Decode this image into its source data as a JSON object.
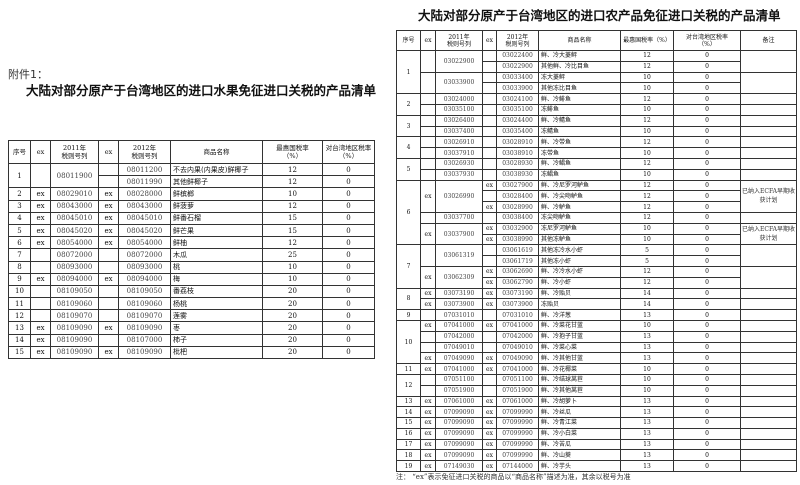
{
  "left": {
    "attachment": "附件1：",
    "title": "大陆对部分原产于台湾地区的进口水果免征进口关税的产品清单",
    "headers": [
      "序号",
      "ex",
      "2011年\n税则号列",
      "ex",
      "2012年\n税则号列",
      "商品名称",
      "最惠国税率\n（%）",
      "对台湾地区税率\n（%）"
    ],
    "groups": [
      {
        "no": "1",
        "subs": [
          {
            "ex": "",
            "code2011": "08011900",
            "items": [
              {
                "ex": "",
                "code": "08011200",
                "name": "不去内果(内果皮)鲜椰子",
                "mfn": "12",
                "tw": "0"
              },
              {
                "ex": "",
                "code": "08011990",
                "name": "其他鲜椰子",
                "mfn": "12",
                "tw": "0"
              }
            ]
          }
        ]
      },
      {
        "no": "2",
        "subs": [
          {
            "ex": "ex",
            "code2011": "08029010",
            "items": [
              {
                "ex": "ex",
                "code": "08028000",
                "name": "鲜槟榔",
                "mfn": "10",
                "tw": "0"
              }
            ]
          }
        ]
      },
      {
        "no": "3",
        "subs": [
          {
            "ex": "ex",
            "code2011": "08043000",
            "items": [
              {
                "ex": "ex",
                "code": "08043000",
                "name": "鲜菠萝",
                "mfn": "12",
                "tw": "0"
              }
            ]
          }
        ]
      },
      {
        "no": "4",
        "subs": [
          {
            "ex": "ex",
            "code2011": "08045010",
            "items": [
              {
                "ex": "ex",
                "code": "08045010",
                "name": "鲜番石榴",
                "mfn": "15",
                "tw": "0"
              }
            ]
          }
        ]
      },
      {
        "no": "5",
        "subs": [
          {
            "ex": "ex",
            "code2011": "08045020",
            "items": [
              {
                "ex": "ex",
                "code": "08045020",
                "name": "鲜芒果",
                "mfn": "15",
                "tw": "0"
              }
            ]
          }
        ]
      },
      {
        "no": "6",
        "subs": [
          {
            "ex": "ex",
            "code2011": "08054000",
            "items": [
              {
                "ex": "ex",
                "code": "08054000",
                "name": "鲜柚",
                "mfn": "12",
                "tw": "0"
              }
            ]
          }
        ]
      },
      {
        "no": "7",
        "subs": [
          {
            "ex": "",
            "code2011": "08072000",
            "items": [
              {
                "ex": "",
                "code": "08072000",
                "name": "木瓜",
                "mfn": "25",
                "tw": "0"
              }
            ]
          }
        ]
      },
      {
        "no": "8",
        "subs": [
          {
            "ex": "",
            "code2011": "08093000",
            "items": [
              {
                "ex": "",
                "code": "08093000",
                "name": "桃",
                "mfn": "10",
                "tw": "0"
              }
            ]
          }
        ]
      },
      {
        "no": "9",
        "subs": [
          {
            "ex": "ex",
            "code2011": "08094000",
            "items": [
              {
                "ex": "ex",
                "code": "08094000",
                "name": "梅",
                "mfn": "10",
                "tw": "0"
              }
            ]
          }
        ]
      },
      {
        "no": "10",
        "subs": [
          {
            "ex": "",
            "code2011": "08109050",
            "items": [
              {
                "ex": "",
                "code": "08109050",
                "name": "番荔枝",
                "mfn": "20",
                "tw": "0"
              }
            ]
          }
        ]
      },
      {
        "no": "11",
        "subs": [
          {
            "ex": "",
            "code2011": "08109060",
            "items": [
              {
                "ex": "",
                "code": "08109060",
                "name": "杨桃",
                "mfn": "20",
                "tw": "0"
              }
            ]
          }
        ]
      },
      {
        "no": "12",
        "subs": [
          {
            "ex": "",
            "code2011": "08109070",
            "items": [
              {
                "ex": "",
                "code": "08109070",
                "name": "莲雾",
                "mfn": "20",
                "tw": "0"
              }
            ]
          }
        ]
      },
      {
        "no": "13",
        "subs": [
          {
            "ex": "ex",
            "code2011": "08109090",
            "items": [
              {
                "ex": "ex",
                "code": "08109090",
                "name": "枣",
                "mfn": "20",
                "tw": "0"
              }
            ]
          }
        ]
      },
      {
        "no": "14",
        "subs": [
          {
            "ex": "ex",
            "code2011": "08109090",
            "items": [
              {
                "ex": "",
                "code": "08107000",
                "name": "柿子",
                "mfn": "20",
                "tw": "0"
              }
            ]
          }
        ]
      },
      {
        "no": "15",
        "subs": [
          {
            "ex": "ex",
            "code2011": "08109090",
            "items": [
              {
                "ex": "ex",
                "code": "08109090",
                "name": "枇杷",
                "mfn": "20",
                "tw": "0"
              }
            ]
          }
        ]
      }
    ]
  },
  "right": {
    "title": "大陆对部分原产于台湾地区的进口农产品免征进口关税的产品清单",
    "headers": [
      "序号",
      "ex",
      "2011年\n税则号列",
      "ex",
      "2012年\n税则号列",
      "商品名称",
      "最惠国税率（%）",
      "对台湾地区税率\n（%）",
      "备注"
    ],
    "groups": [
      {
        "no": "1",
        "subs": [
          {
            "ex": "",
            "code2011": "03022900",
            "note": "",
            "items": [
              {
                "ex": "",
                "code": "03022400",
                "name": "鲜、冷大菱鲆",
                "mfn": "12",
                "tw": "0"
              },
              {
                "ex": "",
                "code": "03022900",
                "name": "其他鲜、冷比目鱼",
                "mfn": "12",
                "tw": "0"
              }
            ]
          },
          {
            "ex": "",
            "code2011": "03033900",
            "note": "",
            "items": [
              {
                "ex": "",
                "code": "03033400",
                "name": "冻大菱鲆",
                "mfn": "10",
                "tw": "0"
              },
              {
                "ex": "",
                "code": "03033900",
                "name": "其他冻比目鱼",
                "mfn": "10",
                "tw": "0"
              }
            ]
          }
        ]
      },
      {
        "no": "2",
        "subs": [
          {
            "ex": "",
            "code2011": "03024000",
            "note": "",
            "items": [
              {
                "ex": "",
                "code": "03024100",
                "name": "鲜、冷鲱鱼",
                "mfn": "12",
                "tw": "0"
              }
            ]
          },
          {
            "ex": "",
            "code2011": "03035100",
            "note": "",
            "items": [
              {
                "ex": "",
                "code": "03035100",
                "name": "冻鲱鱼",
                "mfn": "10",
                "tw": "0"
              }
            ]
          }
        ]
      },
      {
        "no": "3",
        "subs": [
          {
            "ex": "",
            "code2011": "03026400",
            "note": "",
            "items": [
              {
                "ex": "",
                "code": "03024400",
                "name": "鲜、冷鲭鱼",
                "mfn": "12",
                "tw": "0"
              }
            ]
          },
          {
            "ex": "",
            "code2011": "03037400",
            "note": "",
            "items": [
              {
                "ex": "",
                "code": "03035400",
                "name": "冻鲭鱼",
                "mfn": "10",
                "tw": "0"
              }
            ]
          }
        ]
      },
      {
        "no": "4",
        "subs": [
          {
            "ex": "",
            "code2011": "03026910",
            "note": "",
            "items": [
              {
                "ex": "",
                "code": "03028910",
                "name": "鲜、冷带鱼",
                "mfn": "12",
                "tw": "0"
              }
            ]
          },
          {
            "ex": "",
            "code2011": "03037910",
            "note": "",
            "items": [
              {
                "ex": "",
                "code": "03038910",
                "name": "冻带鱼",
                "mfn": "10",
                "tw": "0"
              }
            ]
          }
        ]
      },
      {
        "no": "5",
        "subs": [
          {
            "ex": "",
            "code2011": "03026930",
            "note": "",
            "items": [
              {
                "ex": "",
                "code": "03028930",
                "name": "鲜、冷鲳鱼",
                "mfn": "12",
                "tw": "0"
              }
            ]
          },
          {
            "ex": "",
            "code2011": "03037930",
            "note": "",
            "items": [
              {
                "ex": "",
                "code": "03038930",
                "name": "冻鲳鱼",
                "mfn": "10",
                "tw": "0"
              }
            ]
          }
        ]
      },
      {
        "no": "6",
        "subs": [
          {
            "ex": "ex",
            "code2011": "03026990",
            "note": "已纳入ECFA早期收获计划",
            "items": [
              {
                "ex": "ex",
                "code": "03027900",
                "name": "鲜、冷尼罗河鲈鱼",
                "mfn": "12",
                "tw": "0"
              },
              {
                "ex": "",
                "code": "03028400",
                "name": "鲜、冷尖吻鲈鱼",
                "mfn": "12",
                "tw": "0"
              },
              {
                "ex": "ex",
                "code": "03028990",
                "name": "鲜、冷鲈鱼",
                "mfn": "12",
                "tw": "0"
              }
            ]
          },
          {
            "ex": "",
            "code2011": "03037700",
            "note": "",
            "items": [
              {
                "ex": "",
                "code": "03038400",
                "name": "冻尖吻鲈鱼",
                "mfn": "12",
                "tw": "0"
              }
            ]
          },
          {
            "ex": "ex",
            "code2011": "03037900",
            "note": "已纳入ECFA早期收获计划",
            "items": [
              {
                "ex": "ex",
                "code": "03032900",
                "name": "冻尼罗河鲈鱼",
                "mfn": "10",
                "tw": "0"
              },
              {
                "ex": "ex",
                "code": "03038990",
                "name": "其他冻鲈鱼",
                "mfn": "10",
                "tw": "0"
              }
            ]
          }
        ]
      },
      {
        "no": "7",
        "subs": [
          {
            "ex": "",
            "code2011": "03061319",
            "note": "",
            "items": [
              {
                "ex": "",
                "code": "03061619",
                "name": "其他冻冷水小虾",
                "mfn": "5",
                "tw": "0"
              },
              {
                "ex": "",
                "code": "03061719",
                "name": "其他冻小虾",
                "mfn": "5",
                "tw": "0"
              }
            ]
          },
          {
            "ex": "ex",
            "code2011": "03062309",
            "note": "",
            "items": [
              {
                "ex": "ex",
                "code": "03062690",
                "name": "鲜、冷冷水小虾",
                "mfn": "12",
                "tw": "0"
              },
              {
                "ex": "ex",
                "code": "03062790",
                "name": "鲜、冷小虾",
                "mfn": "12",
                "tw": "0"
              }
            ]
          }
        ]
      },
      {
        "no": "8",
        "subs": [
          {
            "ex": "ex",
            "code2011": "03073190",
            "note": "",
            "items": [
              {
                "ex": "ex",
                "code": "03073190",
                "name": "鲜、冷贻贝",
                "mfn": "14",
                "tw": "0"
              }
            ]
          },
          {
            "ex": "ex",
            "code2011": "03073900",
            "note": "",
            "items": [
              {
                "ex": "ex",
                "code": "03073900",
                "name": "冻贻贝",
                "mfn": "14",
                "tw": "0"
              }
            ]
          }
        ]
      },
      {
        "no": "9",
        "subs": [
          {
            "ex": "",
            "code2011": "07031010",
            "note": "",
            "items": [
              {
                "ex": "",
                "code": "07031010",
                "name": "鲜、冷洋葱",
                "mfn": "13",
                "tw": "0"
              }
            ]
          }
        ]
      },
      {
        "no": "10",
        "subs": [
          {
            "ex": "ex",
            "code2011": "07041000",
            "note": "",
            "items": [
              {
                "ex": "ex",
                "code": "07041000",
                "name": "鲜、冷菜花甘蓝",
                "mfn": "10",
                "tw": "0"
              }
            ]
          },
          {
            "ex": "",
            "code2011": "07042000",
            "note": "",
            "items": [
              {
                "ex": "",
                "code": "07042000",
                "name": "鲜、冷抱子甘蓝",
                "mfn": "13",
                "tw": "0"
              }
            ]
          },
          {
            "ex": "",
            "code2011": "07049010",
            "note": "",
            "items": [
              {
                "ex": "",
                "code": "07049010",
                "name": "鲜、冷菜心菜",
                "mfn": "13",
                "tw": "0"
              }
            ]
          },
          {
            "ex": "ex",
            "code2011": "07049090",
            "note": "",
            "items": [
              {
                "ex": "ex",
                "code": "07049090",
                "name": "鲜、冷其他甘蓝",
                "mfn": "13",
                "tw": "0"
              }
            ]
          }
        ]
      },
      {
        "no": "11",
        "subs": [
          {
            "ex": "ex",
            "code2011": "07041000",
            "note": "",
            "items": [
              {
                "ex": "ex",
                "code": "07041000",
                "name": "鲜、冷花椰菜",
                "mfn": "10",
                "tw": "0"
              }
            ]
          }
        ]
      },
      {
        "no": "12",
        "subs": [
          {
            "ex": "",
            "code2011": "07051100",
            "note": "",
            "items": [
              {
                "ex": "",
                "code": "07051100",
                "name": "鲜、冷结球莴苣",
                "mfn": "10",
                "tw": "0"
              }
            ]
          },
          {
            "ex": "",
            "code2011": "07051900",
            "note": "",
            "items": [
              {
                "ex": "",
                "code": "07051900",
                "name": "鲜、冷其他莴苣",
                "mfn": "10",
                "tw": "0"
              }
            ]
          }
        ]
      },
      {
        "no": "13",
        "subs": [
          {
            "ex": "ex",
            "code2011": "07061000",
            "note": "",
            "items": [
              {
                "ex": "ex",
                "code": "07061000",
                "name": "鲜、冷胡萝卜",
                "mfn": "13",
                "tw": "0"
              }
            ]
          }
        ]
      },
      {
        "no": "14",
        "subs": [
          {
            "ex": "ex",
            "code2011": "07099090",
            "note": "",
            "items": [
              {
                "ex": "ex",
                "code": "07099990",
                "name": "鲜、冷丝瓜",
                "mfn": "13",
                "tw": "0"
              }
            ]
          }
        ]
      },
      {
        "no": "15",
        "subs": [
          {
            "ex": "ex",
            "code2011": "07099090",
            "note": "",
            "items": [
              {
                "ex": "ex",
                "code": "07099990",
                "name": "鲜、冷青江菜",
                "mfn": "13",
                "tw": "0"
              }
            ]
          }
        ]
      },
      {
        "no": "16",
        "subs": [
          {
            "ex": "ex",
            "code2011": "07099090",
            "note": "",
            "items": [
              {
                "ex": "ex",
                "code": "07099990",
                "name": "鲜、冷小白菜",
                "mfn": "13",
                "tw": "0"
              }
            ]
          }
        ]
      },
      {
        "no": "17",
        "subs": [
          {
            "ex": "ex",
            "code2011": "07099090",
            "note": "",
            "items": [
              {
                "ex": "ex",
                "code": "07099990",
                "name": "鲜、冷苦瓜",
                "mfn": "13",
                "tw": "0"
              }
            ]
          }
        ]
      },
      {
        "no": "18",
        "subs": [
          {
            "ex": "ex",
            "code2011": "07099090",
            "note": "",
            "items": [
              {
                "ex": "ex",
                "code": "07099990",
                "name": "鲜、冷山葵",
                "mfn": "13",
                "tw": "0"
              }
            ]
          }
        ]
      },
      {
        "no": "19",
        "subs": [
          {
            "ex": "ex",
            "code2011": "07149030",
            "note": "",
            "items": [
              {
                "ex": "ex",
                "code": "07144000",
                "name": "鲜、冷芋头",
                "mfn": "13",
                "tw": "0"
              }
            ]
          }
        ]
      }
    ],
    "footnote": "注：  “ex”表示免征进口关税的商品以“商品名称”描述为准，其余以税号为准"
  }
}
